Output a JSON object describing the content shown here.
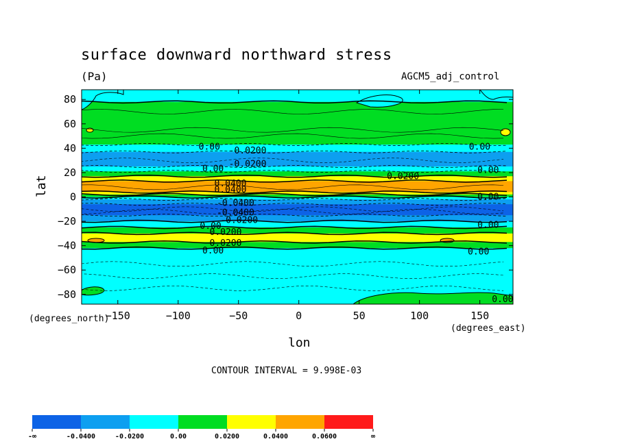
{
  "header": {
    "title": "surface downward northward stress",
    "units": "(Pa)",
    "dataset": "AGCM5_adj_control"
  },
  "footer": {
    "contour_interval": "CONTOUR INTERVAL = 9.998E-03"
  },
  "chart_data": {
    "type": "heatmap",
    "title": "surface downward northward stress",
    "subtitle": "(Pa)",
    "xlabel": "lon",
    "xlabel_unit": "(degrees_east)",
    "ylabel": "lat",
    "ylabel_unit": "(degrees_north)",
    "xlim": [
      -180,
      177.5
    ],
    "ylim": [
      -88,
      88
    ],
    "x_ticks": [
      -150,
      -100,
      -50,
      0,
      50,
      100,
      150
    ],
    "y_ticks": [
      80,
      60,
      40,
      20,
      0,
      -20,
      -40,
      -60,
      -80
    ],
    "levels": [
      {
        "label": "-∞",
        "color": "#0d63e6"
      },
      {
        "label": "-0.0400",
        "color": "#0d9ff0"
      },
      {
        "label": "-0.0200",
        "color": "#00ffff"
      },
      {
        "label": "0.00",
        "color": "#00dd22"
      },
      {
        "label": "0.0200",
        "color": "#ffff00"
      },
      {
        "label": "0.0400",
        "color": "#ffa500"
      },
      {
        "label": "0.0600",
        "color": "#ff1a1a"
      },
      {
        "label": "∞",
        "color": ""
      }
    ],
    "zonal_bands": [
      {
        "lat": [
          78,
          88
        ],
        "color": "#00ffff"
      },
      {
        "lat": [
          43,
          78
        ],
        "color": "#00dd22"
      },
      {
        "lat": [
          37,
          43
        ],
        "color": "#00ffff"
      },
      {
        "lat": [
          25,
          37
        ],
        "color": "#0d9ff0"
      },
      {
        "lat": [
          21,
          25
        ],
        "color": "#00ffff"
      },
      {
        "lat": [
          17,
          21
        ],
        "color": "#00dd22"
      },
      {
        "lat": [
          13,
          17
        ],
        "color": "#ffff00"
      },
      {
        "lat": [
          4,
          13
        ],
        "color": "#ffa500"
      },
      {
        "lat": [
          2,
          4
        ],
        "color": "#ffff00"
      },
      {
        "lat": [
          0,
          2
        ],
        "color": "#00dd22"
      },
      {
        "lat": [
          -2,
          0
        ],
        "color": "#00ffff"
      },
      {
        "lat": [
          -6,
          -2
        ],
        "color": "#0d9ff0"
      },
      {
        "lat": [
          -15,
          -6
        ],
        "color": "#0d63e6"
      },
      {
        "lat": [
          -20,
          -15
        ],
        "color": "#0d9ff0"
      },
      {
        "lat": [
          -25,
          -20
        ],
        "color": "#00ffff"
      },
      {
        "lat": [
          -30,
          -25
        ],
        "color": "#00dd22"
      },
      {
        "lat": [
          -37,
          -30
        ],
        "color": "#ffff00"
      },
      {
        "lat": [
          -42,
          -37
        ],
        "color": "#00dd22"
      },
      {
        "lat": [
          -88,
          -42
        ],
        "color": "#00ffff"
      }
    ],
    "contour_labels": [
      {
        "text": "0.00",
        "lon": -83,
        "lat": 41
      },
      {
        "text": "-0.0200",
        "lon": -58,
        "lat": 38
      },
      {
        "text": "-0.0200",
        "lon": -58,
        "lat": 27
      },
      {
        "text": "0.00",
        "lon": -80,
        "lat": 23
      },
      {
        "text": "0.0200",
        "lon": 73,
        "lat": 17
      },
      {
        "text": "0.0400",
        "lon": -70,
        "lat": 11
      },
      {
        "text": "0.0400",
        "lon": -70,
        "lat": 6
      },
      {
        "text": "-0.0400",
        "lon": -68,
        "lat": -5
      },
      {
        "text": "-0.0400",
        "lon": -68,
        "lat": -13
      },
      {
        "text": "-0.0200",
        "lon": -65,
        "lat": -19
      },
      {
        "text": "0.00",
        "lon": -82,
        "lat": -24
      },
      {
        "text": "0.0200",
        "lon": -74,
        "lat": -29
      },
      {
        "text": "0.0200",
        "lon": -74,
        "lat": -38
      },
      {
        "text": "0.00",
        "lon": -80,
        "lat": -44
      },
      {
        "text": "0.00",
        "lon": 141,
        "lat": 41
      },
      {
        "text": "0.00",
        "lon": 148,
        "lat": 22
      },
      {
        "text": "0.00",
        "lon": 148,
        "lat": 0
      },
      {
        "text": "0.00",
        "lon": 148,
        "lat": -23
      },
      {
        "text": "0.00",
        "lon": 140,
        "lat": -45
      },
      {
        "text": "0.00",
        "lon": 160,
        "lat": -84
      }
    ]
  }
}
